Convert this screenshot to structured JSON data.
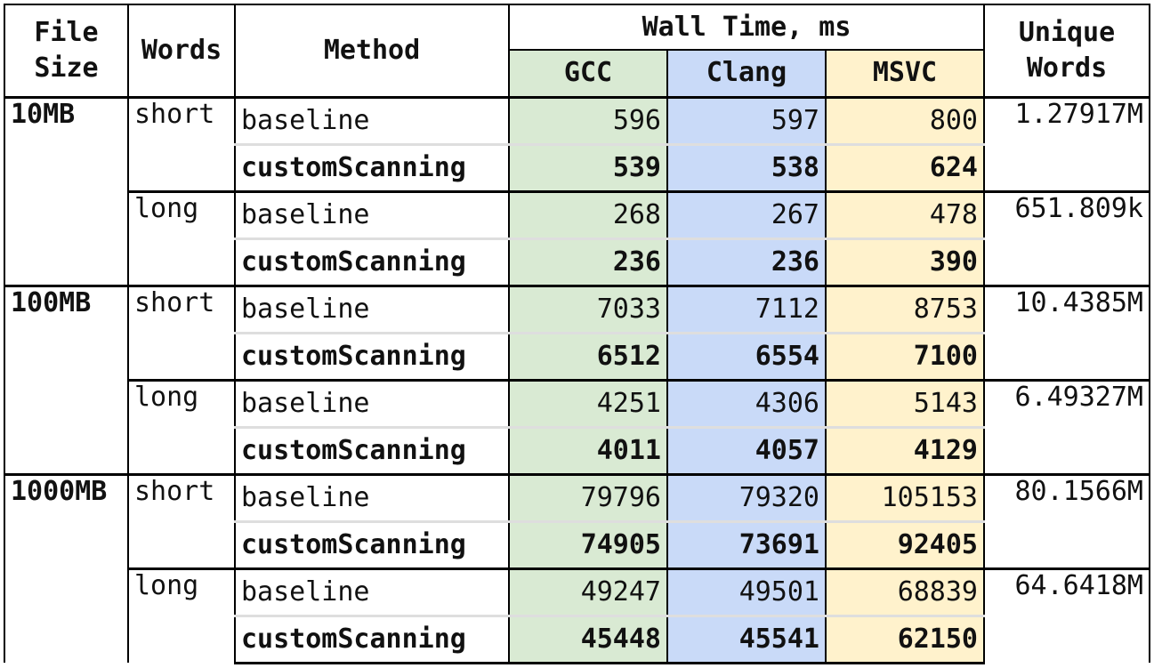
{
  "headers": {
    "file_size": "File\nSize",
    "words": "Words",
    "method": "Method",
    "wall_time": "Wall Time, ms",
    "gcc": "GCC",
    "clang": "Clang",
    "msvc": "MSVC",
    "unique_words": "Unique\nWords"
  },
  "groups": [
    {
      "file_size": "10MB",
      "words": [
        {
          "label": "short",
          "unique": "1.27917M",
          "rows": [
            {
              "method": "baseline",
              "gcc": "596",
              "clang": "597",
              "msvc": "800"
            },
            {
              "method": "customScanning",
              "gcc": "539",
              "clang": "538",
              "msvc": "624"
            }
          ]
        },
        {
          "label": "long",
          "unique": "651.809k",
          "rows": [
            {
              "method": "baseline",
              "gcc": "268",
              "clang": "267",
              "msvc": "478"
            },
            {
              "method": "customScanning",
              "gcc": "236",
              "clang": "236",
              "msvc": "390"
            }
          ]
        }
      ]
    },
    {
      "file_size": "100MB",
      "words": [
        {
          "label": "short",
          "unique": "10.4385M",
          "rows": [
            {
              "method": "baseline",
              "gcc": "7033",
              "clang": "7112",
              "msvc": "8753"
            },
            {
              "method": "customScanning",
              "gcc": "6512",
              "clang": "6554",
              "msvc": "7100"
            }
          ]
        },
        {
          "label": "long",
          "unique": "6.49327M",
          "rows": [
            {
              "method": "baseline",
              "gcc": "4251",
              "clang": "4306",
              "msvc": "5143"
            },
            {
              "method": "customScanning",
              "gcc": "4011",
              "clang": "4057",
              "msvc": "4129"
            }
          ]
        }
      ]
    },
    {
      "file_size": "1000MB",
      "words": [
        {
          "label": "short",
          "unique": "80.1566M",
          "rows": [
            {
              "method": "baseline",
              "gcc": "79796",
              "clang": "79320",
              "msvc": "105153"
            },
            {
              "method": "customScanning",
              "gcc": "74905",
              "clang": "73691",
              "msvc": "92405"
            }
          ]
        },
        {
          "label": "long",
          "unique": "64.6418M",
          "rows": [
            {
              "method": "baseline",
              "gcc": "49247",
              "clang": "49501",
              "msvc": "68839"
            },
            {
              "method": "customScanning",
              "gcc": "45448",
              "clang": "45541",
              "msvc": "62150"
            }
          ]
        }
      ]
    }
  ],
  "colors": {
    "gcc": "#d9ead3",
    "clang": "#c9daf8",
    "msvc": "#fff2cc"
  }
}
